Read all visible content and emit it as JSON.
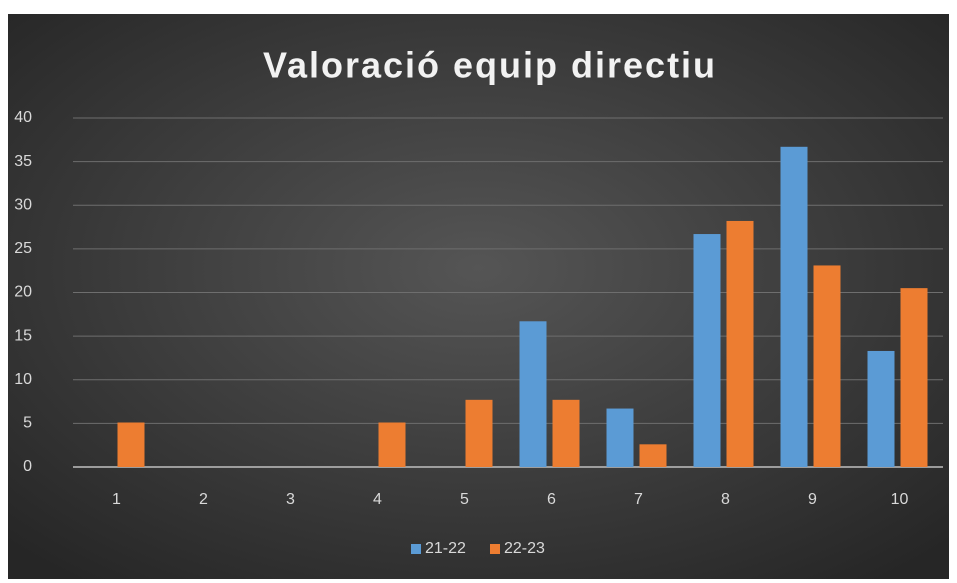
{
  "chart_data": {
    "type": "bar",
    "title": "Valoració equip directiu",
    "categories": [
      "1",
      "2",
      "3",
      "4",
      "5",
      "6",
      "7",
      "8",
      "9",
      "10"
    ],
    "series": [
      {
        "name": "21-22",
        "color": "#5b9bd5",
        "values": [
          0,
          0,
          0,
          0,
          0,
          16.7,
          6.7,
          26.7,
          36.7,
          13.3
        ]
      },
      {
        "name": "22-23",
        "color": "#ed7d31",
        "values": [
          5.1,
          0,
          0,
          5.1,
          7.7,
          7.7,
          2.6,
          28.2,
          23.1,
          20.5
        ]
      }
    ],
    "ylim": [
      0,
      40
    ],
    "yticks": [
      0,
      5,
      10,
      15,
      20,
      25,
      30,
      35,
      40
    ],
    "grid": true,
    "legend": "bottom"
  }
}
